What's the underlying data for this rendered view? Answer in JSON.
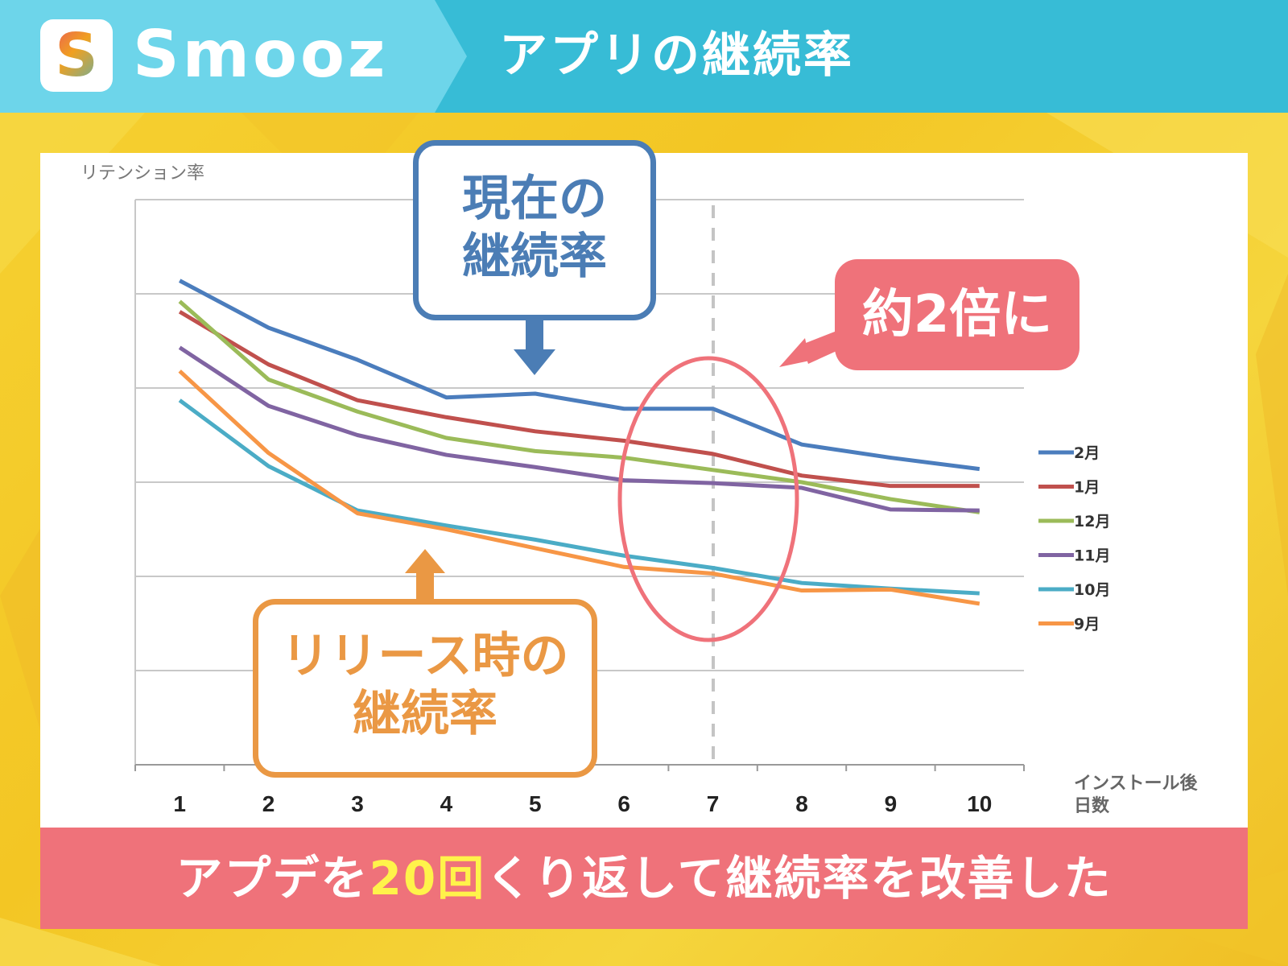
{
  "header": {
    "logo_letter": "S",
    "brand": "Smooz",
    "title": "アプリの継続率"
  },
  "callouts": {
    "current": [
      "現在の",
      "継続率"
    ],
    "release": [
      "リリース時の",
      "継続率"
    ],
    "double": "約2倍に"
  },
  "footer": {
    "before": "アプデを",
    "highlight": "20回",
    "after": "くり返して継続率を改善した"
  },
  "colors": {
    "header_left": "#6dd5ea",
    "header_right": "#37bcd6",
    "accent_pink": "#ef727a",
    "current_blue": "#4b7db5",
    "release_orange": "#ea9844",
    "highlight_yellow": "#fff34a"
  },
  "chart_data": {
    "type": "line",
    "ylabel": "リテンション率",
    "xlabel": [
      "インストール後",
      "日数"
    ],
    "categories": [
      "1",
      "2",
      "3",
      "4",
      "5",
      "6",
      "7",
      "8",
      "9",
      "10"
    ],
    "ylim": [
      0,
      6
    ],
    "grid": true,
    "legend_position": "right",
    "highlight_day": "7",
    "series": [
      {
        "name": "2月",
        "color": "#4b7dbd",
        "values": [
          5.14,
          4.64,
          4.3,
          3.9,
          3.94,
          3.78,
          3.78,
          3.4,
          3.26,
          3.14
        ]
      },
      {
        "name": "1月",
        "color": "#c0504d",
        "values": [
          4.81,
          4.25,
          3.87,
          3.69,
          3.54,
          3.44,
          3.3,
          3.07,
          2.96,
          2.96
        ]
      },
      {
        "name": "12月",
        "color": "#9bbb59",
        "values": [
          4.92,
          4.09,
          3.75,
          3.47,
          3.33,
          3.26,
          3.13,
          3.0,
          2.82,
          2.68
        ]
      },
      {
        "name": "11月",
        "color": "#8064a2",
        "values": [
          4.43,
          3.81,
          3.5,
          3.29,
          3.16,
          3.02,
          2.99,
          2.94,
          2.71,
          2.7
        ]
      },
      {
        "name": "10月",
        "color": "#4bacc6",
        "values": [
          3.87,
          3.17,
          2.7,
          2.54,
          2.39,
          2.22,
          2.09,
          1.93,
          1.87,
          1.82
        ]
      },
      {
        "name": "9月",
        "color": "#f79646",
        "values": [
          4.18,
          3.31,
          2.67,
          2.5,
          2.3,
          2.1,
          2.03,
          1.85,
          1.86,
          1.71
        ]
      }
    ]
  }
}
